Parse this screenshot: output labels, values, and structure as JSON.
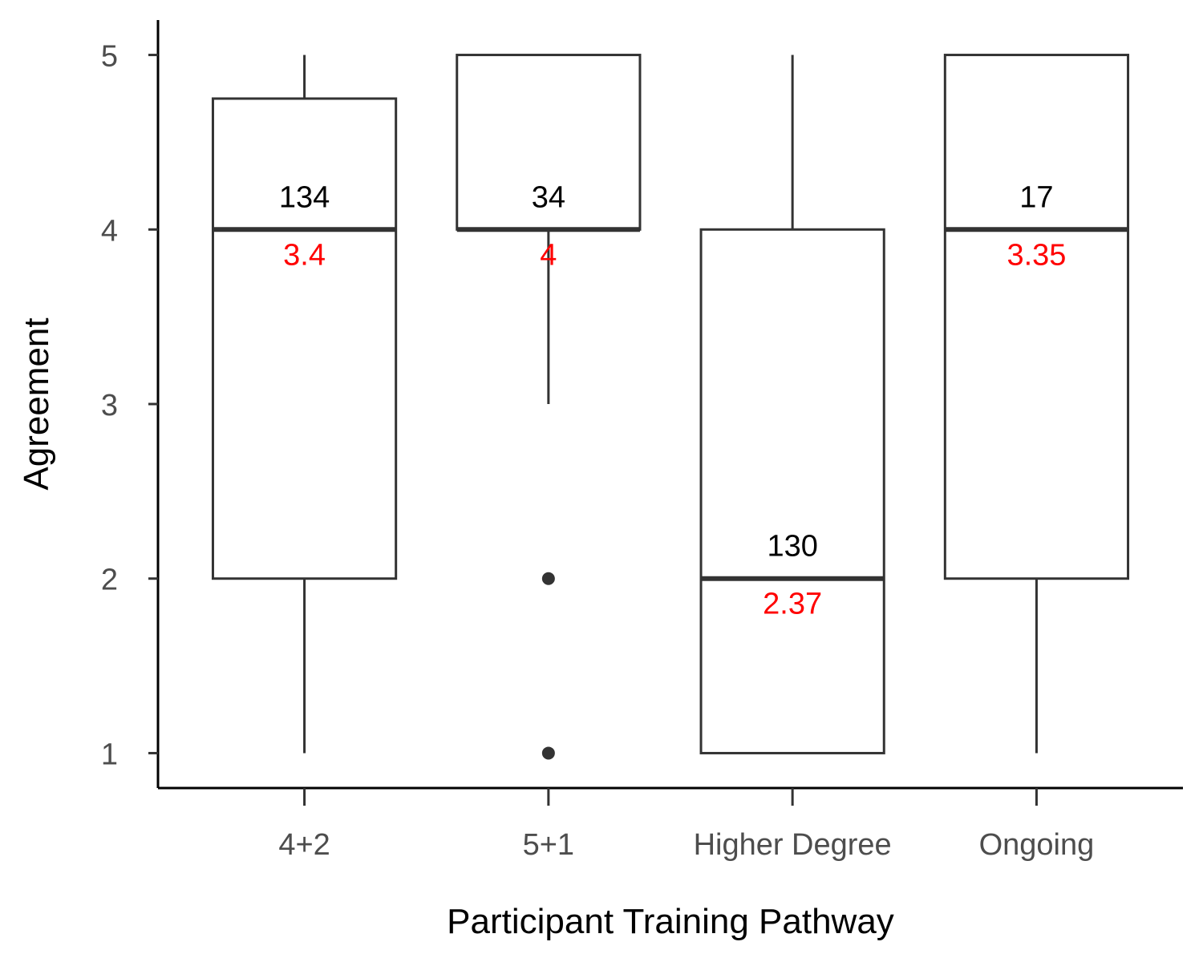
{
  "chart_data": {
    "type": "box",
    "xlabel": "Participant Training Pathway",
    "ylabel": "Agreement",
    "ylim": [
      0.8,
      5.2
    ],
    "yticks": [
      1,
      2,
      3,
      4,
      5
    ],
    "categories": [
      "4+2",
      "5+1",
      "Higher Degree",
      "Ongoing"
    ],
    "boxes": [
      {
        "category": "4+2",
        "min": 1,
        "q1": 2,
        "median": 4,
        "q3": 4.75,
        "max": 5,
        "outliers": [],
        "n": "134",
        "mean": "3.4"
      },
      {
        "category": "5+1",
        "min": 3,
        "q1": 4,
        "median": 4,
        "q3": 5,
        "max": 5,
        "outliers": [
          1,
          2
        ],
        "n": "34",
        "mean": "4"
      },
      {
        "category": "Higher Degree",
        "min": 1,
        "q1": 1,
        "median": 2,
        "q3": 4,
        "max": 5,
        "outliers": [],
        "n": "130",
        "mean": "2.37"
      },
      {
        "category": "Ongoing",
        "min": 1,
        "q1": 2,
        "median": 4,
        "q3": 5,
        "max": 5,
        "outliers": [],
        "n": "17",
        "mean": "3.35"
      }
    ],
    "colors": {
      "box_line": "#333333",
      "n_label": "#000000",
      "mean_label": "#ff0000",
      "axis_text": "#4d4d4d"
    },
    "grid": false,
    "legend": "none"
  }
}
